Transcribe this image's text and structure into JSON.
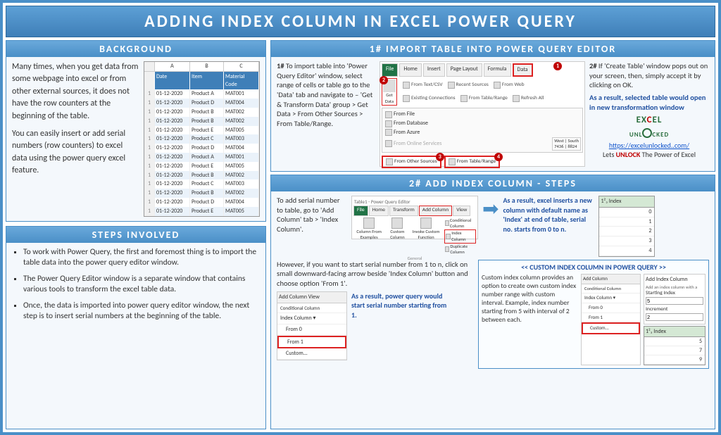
{
  "title": "ADDING INDEX COLUMN IN EXCEL POWER QUERY",
  "background": {
    "heading": "BACKGROUND",
    "para1": "Many times, when you get data from some webpage into excel or from other external sources, it does not have the row counters at the beginning of the table.",
    "para2": "You can easily insert or add serial numbers (row counters) to excel data using the power query excel feature.",
    "table": {
      "col_letters": [
        "",
        "A",
        "B",
        "C"
      ],
      "headers": [
        "",
        "Date",
        "Item",
        "Material Code"
      ],
      "rows": [
        [
          "1",
          "01-12-2020",
          "Product A",
          "MAT001"
        ],
        [
          "1",
          "01-12-2020",
          "Product D",
          "MAT004"
        ],
        [
          "1",
          "01-12-2020",
          "Product B",
          "MAT002"
        ],
        [
          "1",
          "01-12-2020",
          "Product B",
          "MAT002"
        ],
        [
          "1",
          "01-12-2020",
          "Product E",
          "MAT005"
        ],
        [
          "1",
          "01-12-2020",
          "Product C",
          "MAT003"
        ],
        [
          "1",
          "01-12-2020",
          "Product D",
          "MAT004"
        ],
        [
          "1",
          "01-12-2020",
          "Product A",
          "MAT001"
        ],
        [
          "1",
          "01-12-2020",
          "Product E",
          "MAT005"
        ],
        [
          "1",
          "01-12-2020",
          "Product B",
          "MAT002"
        ],
        [
          "1",
          "01-12-2020",
          "Product C",
          "MAT003"
        ],
        [
          "1",
          "01-12-2020",
          "Product B",
          "MAT002"
        ],
        [
          "1",
          "01-12-2020",
          "Product D",
          "MAT004"
        ],
        [
          "1",
          "01-12-2020",
          "Product E",
          "MAT005"
        ]
      ]
    }
  },
  "steps": {
    "heading": "STEPS INVOLVED",
    "items": [
      "To work with Power Query, the first and foremost thing is to import the table data into the power query editor window.",
      "The Power Query Editor window is a separate window that contains various tools to transform the excel table data.",
      "Once, the data is imported into power query editor window, the next step is to insert serial numbers at the beginning of the table."
    ]
  },
  "section1": {
    "heading": "1# IMPORT TABLE INTO POWER QUERY EDITOR",
    "left_lead": "1#",
    "left_text": " To import table into 'Power Query Editor' window, select range of cells or table go to the 'Data' tab and navigate to – 'Get & Transform Data' group > Get Data > From Other Sources > From Table/Range.",
    "ribbon": {
      "tabs": [
        "File",
        "Home",
        "Insert",
        "Page Layout",
        "Formula",
        "Data"
      ],
      "items": [
        "From Text/CSV",
        "From Web",
        "From Table/Range",
        "Recent Sources",
        "Existing Connections",
        "Refresh All"
      ],
      "get_data": "Get Data",
      "dropdown": [
        "From File",
        "From Database",
        "From Azure",
        "From Online Services"
      ],
      "btn1": "From Other Sources",
      "btn2": "From Table/Range",
      "badges": [
        "1",
        "2",
        "3",
        "4"
      ],
      "cells": {
        "h1": "West",
        "h2": "South",
        "v1": "7436",
        "v2": "8824"
      }
    },
    "right_lead": "2#",
    "right_text": " If 'Create Table' window pops out on your screen, then, simply accept it by clicking on OK.",
    "result_text": "As a result, selected table would open in new transformation window",
    "logo_text": "EXCEL UNLOCKED",
    "link": "https://excelunlocked..com/",
    "tagline_pre": "Lets ",
    "tagline_u": "UNLOCK",
    "tagline_post": " The Power of Excel"
  },
  "section2": {
    "heading": "2# ADD INDEX COLUMN - STEPS",
    "intro": "To add serial number to table, go to 'Add Column' tab > 'Index Column'.",
    "pq_title": "Table1 - Power Query Editor",
    "pq_tabs": [
      "File",
      "Home",
      "Transform",
      "Add Column",
      "View"
    ],
    "pq_buttons": [
      "Column From Examples",
      "Custom Column",
      "Invoke Custom Function"
    ],
    "pq_list": [
      "Conditional Column",
      "Index Column",
      "Duplicate Column"
    ],
    "pq_group_label": "General",
    "result1": "As a result, excel inserts a new column with default name as 'Index' at end of table, serial no. starts from 0 to n.",
    "idx_header": "1²₃ Index",
    "idx_vals": [
      "0",
      "1",
      "2",
      "3",
      "4"
    ],
    "however": "However, if you want to start serial number from 1 to n, click on small downward-facing arrow beside 'Index Column' button and choose option 'From 1'.",
    "menu": {
      "header": "Add Column    View",
      "items": [
        "Conditional Column",
        "Index Column ▾",
        "From 0",
        "From 1",
        "Custom..."
      ]
    },
    "result2": "As a result, power query would start serial number starting from 1.",
    "custom": {
      "heading": "<< CUSTOM INDEX COLUMN IN POWER QUERY >>",
      "text": "Custom index column provides an option to create own custom index number range with custom interval. Example, index number starting from 5 with interval of 2 between each.",
      "menu_header": "Add Column",
      "menu_items": [
        "Conditional Column",
        "Index Column ▾",
        "From 0",
        "From 1",
        "Custom..."
      ],
      "dlg_title": "Add Index Column",
      "dlg_sub": "Add an index column with a",
      "f1_label": "Starting Index",
      "f1_val": "5",
      "f2_label": "Increment",
      "f2_val": "2",
      "idx2_header": "1²₃ Index",
      "idx2_vals": [
        "5",
        "7",
        "9"
      ]
    }
  }
}
